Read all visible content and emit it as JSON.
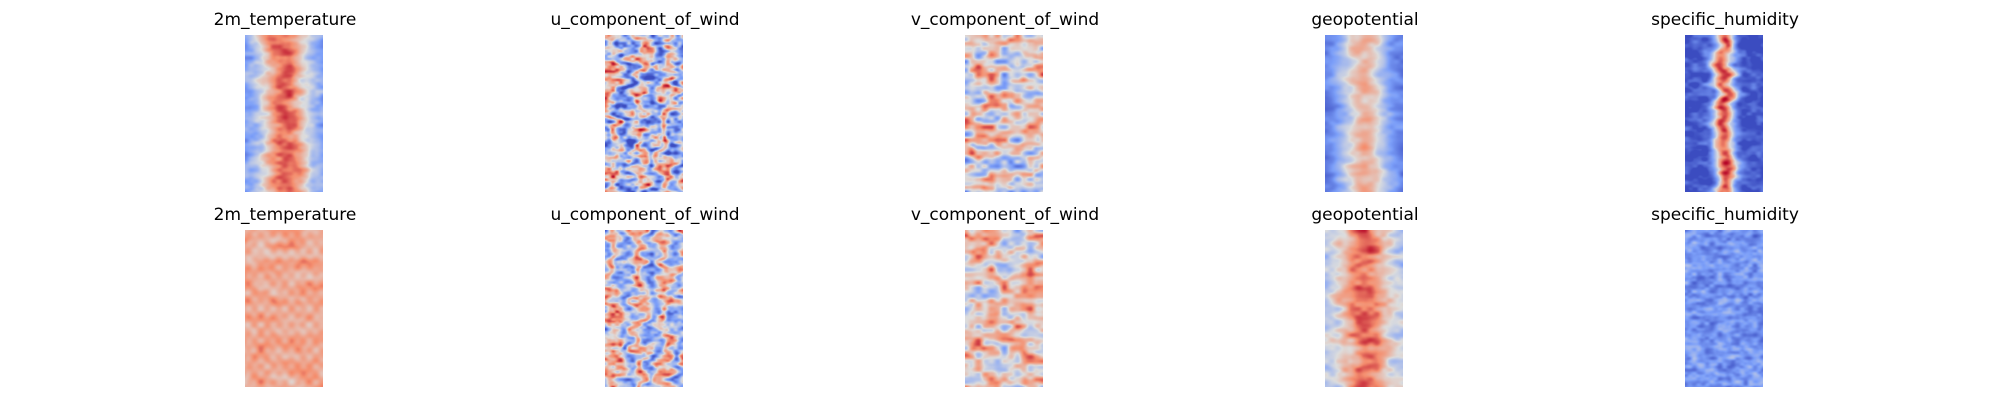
{
  "figure": {
    "rows": [
      {
        "panels": [
          {
            "title": "2m_temperature",
            "variable": "2m_temperature",
            "field": {
              "style": "band",
              "band": 0.78,
              "base": -0.55,
              "noise": 0.28,
              "scale": 7
            }
          },
          {
            "title": "u_component_of_wind",
            "variable": "u_component_of_wind",
            "field": {
              "style": "stripes",
              "base": -0.15,
              "noise": 0.85,
              "scale": 10
            }
          },
          {
            "title": "v_component_of_wind",
            "variable": "v_component_of_wind",
            "field": {
              "style": "blobs",
              "base": 0.0,
              "noise": 0.9,
              "scale": 6
            }
          },
          {
            "title": "geopotential",
            "variable": "geopotential",
            "field": {
              "style": "band",
              "band": 0.65,
              "base": -0.75,
              "noise": 0.25,
              "scale": 6
            }
          },
          {
            "title": "specific_humidity",
            "variable": "specific_humidity",
            "field": {
              "style": "narrow",
              "band": 1.05,
              "base": -0.95,
              "noise": 0.35,
              "scale": 8
            }
          }
        ]
      },
      {
        "panels": [
          {
            "title": "2m_temperature",
            "variable": "2m_temperature",
            "field": {
              "style": "flat",
              "base": 0.35,
              "noise": 0.25,
              "scale": 5
            }
          },
          {
            "title": "u_component_of_wind",
            "variable": "u_component_of_wind",
            "field": {
              "style": "stripes",
              "base": -0.05,
              "noise": 0.6,
              "scale": 10
            }
          },
          {
            "title": "v_component_of_wind",
            "variable": "v_component_of_wind",
            "field": {
              "style": "blobs",
              "base": 0.15,
              "noise": 0.75,
              "scale": 6
            }
          },
          {
            "title": "geopotential",
            "variable": "geopotential",
            "field": {
              "style": "band",
              "band": 0.55,
              "base": -0.25,
              "noise": 0.35,
              "scale": 6
            }
          },
          {
            "title": "specific_humidity",
            "variable": "specific_humidity",
            "field": {
              "style": "flat",
              "base": -0.55,
              "noise": 0.35,
              "scale": 9
            }
          }
        ]
      }
    ],
    "colormap": "coolwarm"
  }
}
